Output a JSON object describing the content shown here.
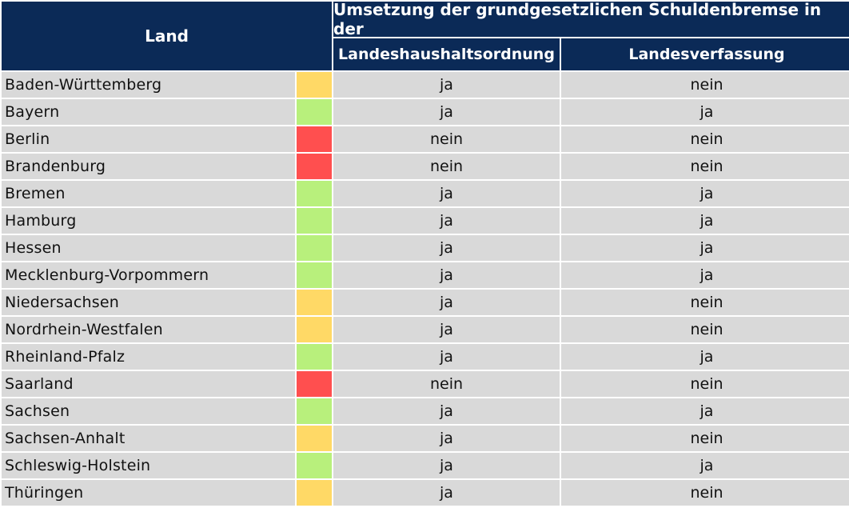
{
  "header": {
    "land_label": "Land",
    "group_label": "Umsetzung der grundgesetzlichen Schuldenbremse in der",
    "col1_label": "Landeshaushaltsordnung",
    "col2_label": "Landesverfassung"
  },
  "colors": {
    "header_bg": "#0b2a57",
    "row_bg": "#d9d9d9",
    "status_green": "#b8f07c",
    "status_yellow": "#ffd966",
    "status_red": "#ff4f4f"
  },
  "rows": [
    {
      "land": "Baden-Württemberg",
      "status": "yellow",
      "lho": "ja",
      "lv": "nein"
    },
    {
      "land": "Bayern",
      "status": "green",
      "lho": "ja",
      "lv": "ja"
    },
    {
      "land": "Berlin",
      "status": "red",
      "lho": "nein",
      "lv": "nein"
    },
    {
      "land": "Brandenburg",
      "status": "red",
      "lho": "nein",
      "lv": "nein"
    },
    {
      "land": "Bremen",
      "status": "green",
      "lho": "ja",
      "lv": "ja"
    },
    {
      "land": "Hamburg",
      "status": "green",
      "lho": "ja",
      "lv": "ja"
    },
    {
      "land": "Hessen",
      "status": "green",
      "lho": "ja",
      "lv": "ja"
    },
    {
      "land": "Mecklenburg-Vorpommern",
      "status": "green",
      "lho": "ja",
      "lv": "ja"
    },
    {
      "land": "Niedersachsen",
      "status": "yellow",
      "lho": "ja",
      "lv": "nein"
    },
    {
      "land": "Nordrhein-Westfalen",
      "status": "yellow",
      "lho": "ja",
      "lv": "nein"
    },
    {
      "land": "Rheinland-Pfalz",
      "status": "green",
      "lho": "ja",
      "lv": "ja"
    },
    {
      "land": "Saarland",
      "status": "red",
      "lho": "nein",
      "lv": "nein"
    },
    {
      "land": "Sachsen",
      "status": "green",
      "lho": "ja",
      "lv": "ja"
    },
    {
      "land": "Sachsen-Anhalt",
      "status": "yellow",
      "lho": "ja",
      "lv": "nein"
    },
    {
      "land": "Schleswig-Holstein",
      "status": "green",
      "lho": "ja",
      "lv": "ja"
    },
    {
      "land": "Thüringen",
      "status": "yellow",
      "lho": "ja",
      "lv": "nein"
    }
  ]
}
